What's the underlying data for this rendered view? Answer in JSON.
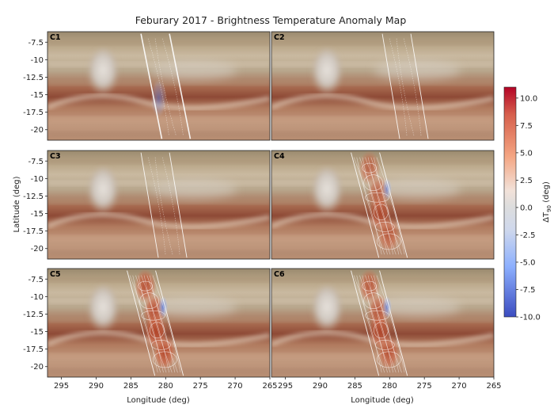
{
  "chart_data": {
    "type": "heatmap",
    "title": "Feburary 2017 - Brightness Temperature Anomaly Map",
    "xlabel": "Longitude (deg)",
    "ylabel": "Latitude (deg)",
    "colorbar_label": "ΔT",
    "colorbar_label_sub": "90",
    "colorbar_label_unit": " (deg)",
    "xlim": [
      297,
      265
    ],
    "ylim": [
      -21.5,
      -6.0
    ],
    "xticks": [
      295,
      290,
      285,
      280,
      275,
      270,
      265
    ],
    "yticks": [
      -7.5,
      -10.0,
      -12.5,
      -15.0,
      -17.5,
      -20.0
    ],
    "colorbar_range": [
      -10.0,
      11.0
    ],
    "colorbar_ticks": [
      10.0,
      7.5,
      5.0,
      2.5,
      0.0,
      -2.5,
      -5.0,
      -7.5,
      -10.0
    ],
    "colormap": "coolwarm",
    "background": "visible-light cloud image of Jupiter's Great Red Spot region",
    "colors": {
      "warm": "#b40426",
      "cool": "#3b4cc0",
      "neutral": "#dddddd",
      "contour": "#ffffff"
    },
    "panels": [
      {
        "label": "C1",
        "scan_center_lon": [
          281.5,
          278.5
        ],
        "anomaly_strength": 0.05
      },
      {
        "label": "C2",
        "scan_center_lon": [
          279.0,
          276.5
        ],
        "anomaly_strength": 0.0
      },
      {
        "label": "C3",
        "scan_center_lon": [
          281.5,
          279.0
        ],
        "anomaly_strength": 0.0
      },
      {
        "label": "C4",
        "scan_center_lon": [
          283.5,
          279.5
        ],
        "anomaly_strength": 0.8
      },
      {
        "label": "C5",
        "scan_center_lon": [
          283.5,
          279.5
        ],
        "anomaly_strength": 1.0
      },
      {
        "label": "C6",
        "scan_center_lon": [
          283.5,
          279.5
        ],
        "anomaly_strength": 0.9
      }
    ]
  }
}
